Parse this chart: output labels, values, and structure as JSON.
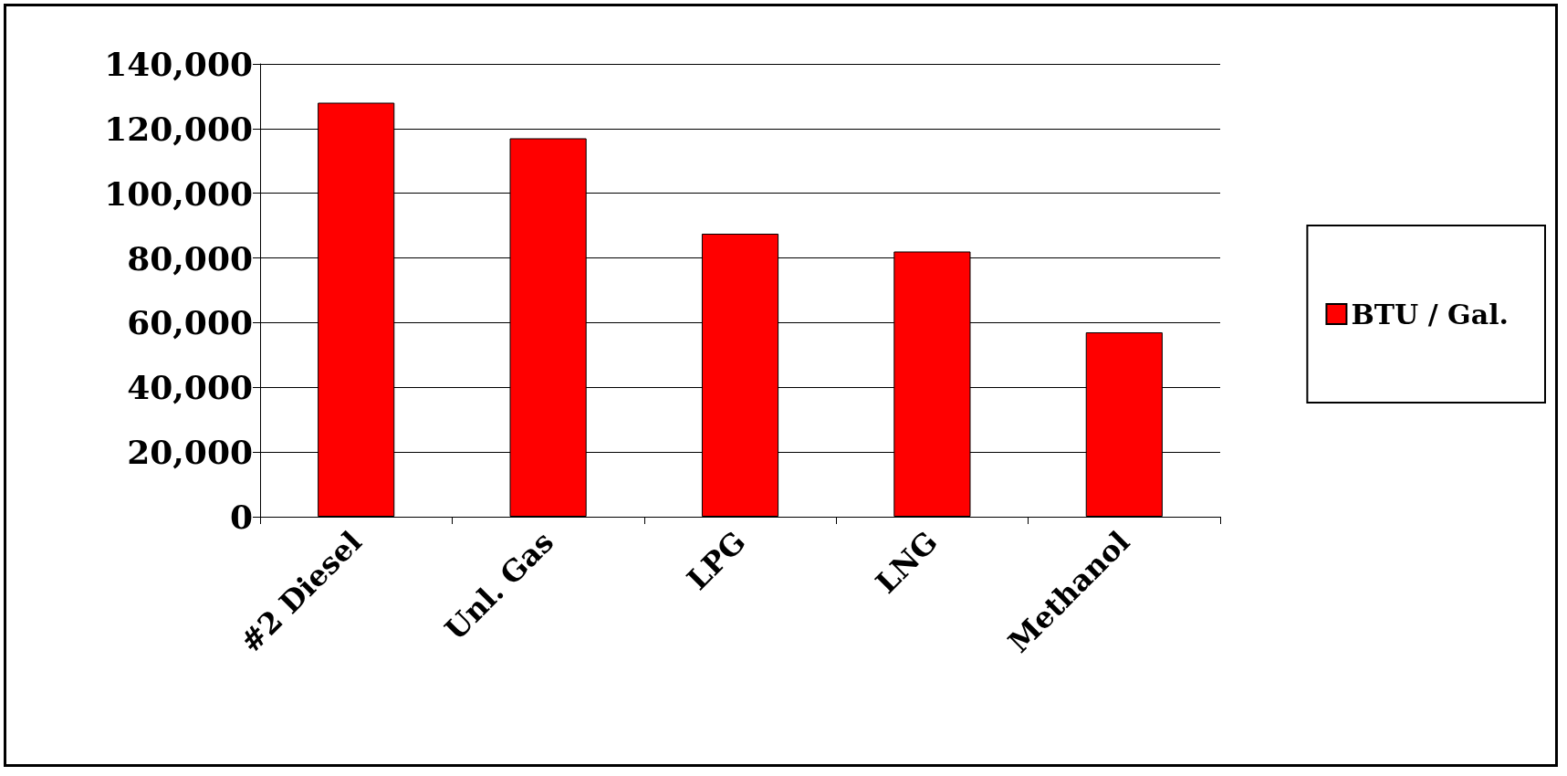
{
  "chart_data": {
    "type": "bar",
    "categories": [
      "#2 Diesel",
      "Unl. Gas",
      "LPG",
      "LNG",
      "Methanol"
    ],
    "series": [
      {
        "name": "BTU / Gal.",
        "color": "#ff0000",
        "values": [
          128000,
          117000,
          87500,
          82000,
          57000
        ]
      }
    ],
    "ylim": [
      0,
      140000
    ],
    "yticks": [
      0,
      {
        "value": 20000,
        "label": "20,000"
      },
      {
        "value": 40000,
        "label": "40,000"
      },
      {
        "value": 60000,
        "label": "60,000"
      },
      {
        "value": 80000,
        "label": "80,000"
      },
      {
        "value": 100000,
        "label": "100,000"
      },
      {
        "value": 120000,
        "label": "120,000"
      },
      {
        "value": 140000,
        "label": "140,000"
      }
    ],
    "grid": "y",
    "legend": "right"
  }
}
